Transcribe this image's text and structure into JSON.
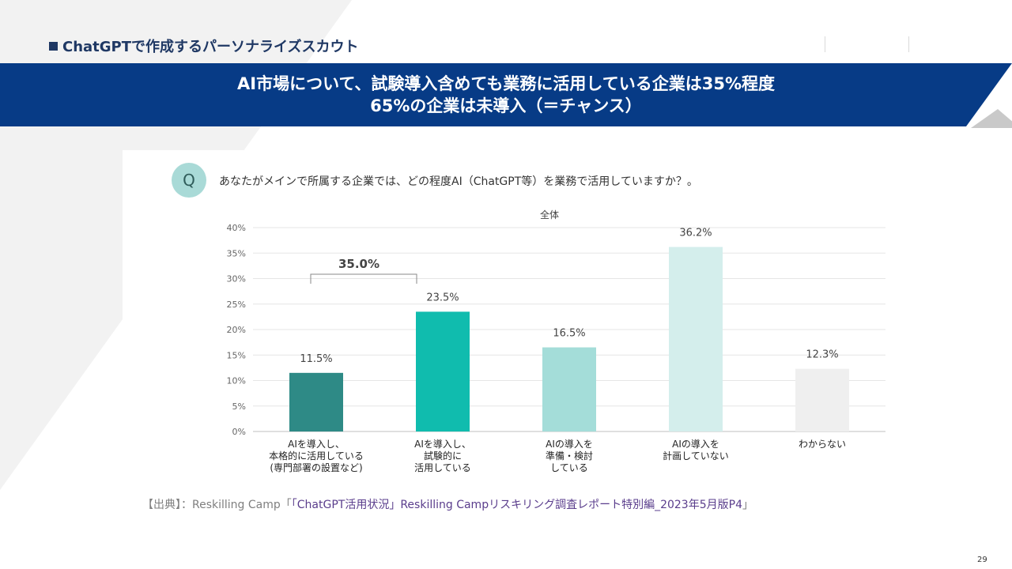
{
  "header": {
    "section_title": "ChatGPTで作成するパーソナライズスカウト",
    "banner_line1": "AI市場について、試験導入含めても業務に活用している企業は35%程度",
    "banner_line2": "65%の企業は未導入（＝チャンス）"
  },
  "question": {
    "badge": "Q",
    "text": "あなたがメインで所属する企業では、どの程度AI（ChatGPT等）を業務で活用していますか？。"
  },
  "source": {
    "prefix": "【出典】：Reskilling Camp「",
    "link": "「ChatGPT活用状況」Reskilling Campリスキリング調査レポート特別編_2023年5月版P4",
    "suffix": "」"
  },
  "page_number": "29",
  "colors": {
    "banner": "#073b86",
    "banner_shadow": "#c9c9c9",
    "bar1": "#2e8a86",
    "bar2": "#10bcae",
    "bar3": "#a4ddd9",
    "bar4": "#d4eeec",
    "bar5": "#efefef"
  },
  "chart_data": {
    "type": "bar",
    "title": "全体",
    "categories": [
      [
        "AIを導入し、",
        "本格的に活用している",
        "(専門部署の設置など)"
      ],
      [
        "AIを導入し、",
        "試験的に",
        "活用している"
      ],
      [
        "AIの導入を",
        "準備・検討",
        "している"
      ],
      [
        "AIの導入を",
        "計画していない"
      ],
      [
        "わからない"
      ]
    ],
    "values": [
      11.5,
      23.5,
      16.5,
      36.2,
      12.3
    ],
    "value_labels": [
      "11.5%",
      "23.5%",
      "16.5%",
      "36.2%",
      "12.3%"
    ],
    "ylim": [
      0,
      40
    ],
    "yticks": [
      0,
      5,
      10,
      15,
      20,
      25,
      30,
      35,
      40
    ],
    "ytick_labels": [
      "0%",
      "5%",
      "10%",
      "15%",
      "20%",
      "25%",
      "30%",
      "35%",
      "40%"
    ],
    "bracket": {
      "label": "35.0%",
      "covers": [
        0,
        1
      ]
    },
    "grid": true
  }
}
